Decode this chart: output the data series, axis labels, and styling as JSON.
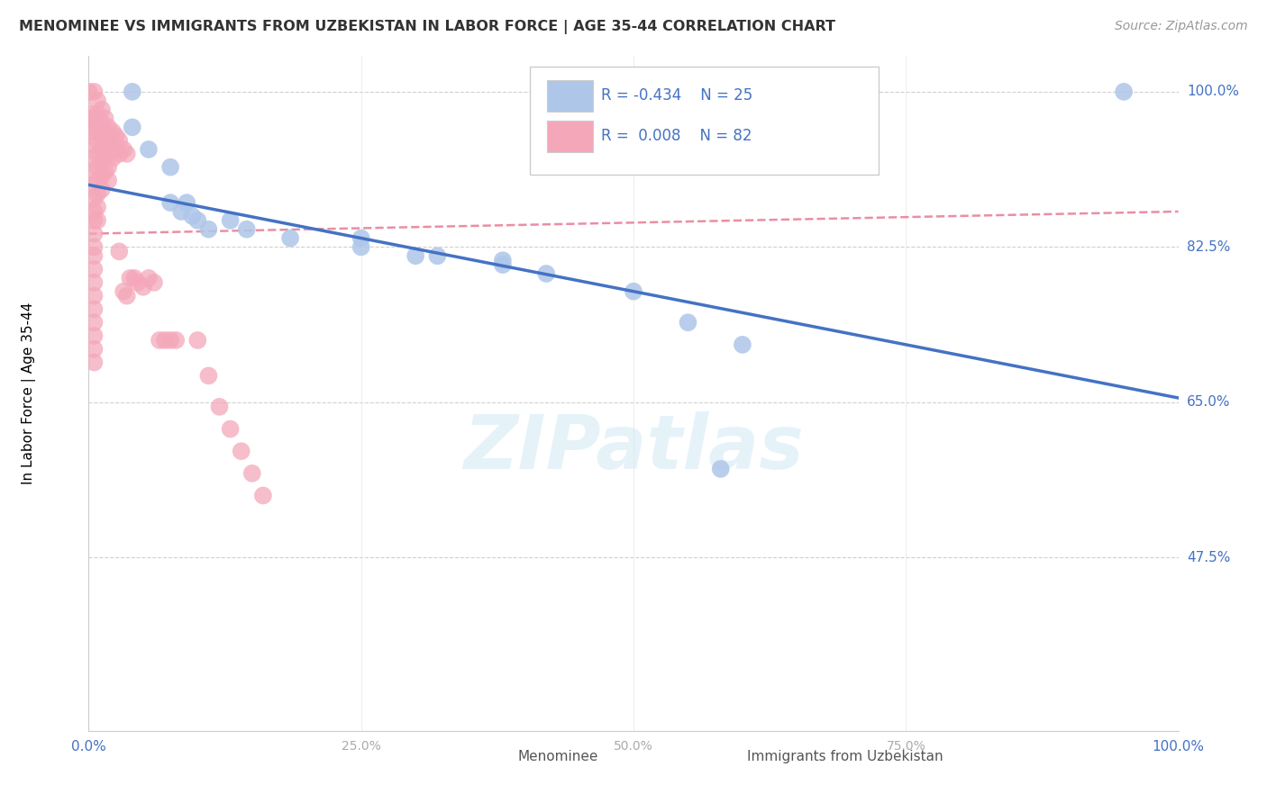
{
  "title": "MENOMINEE VS IMMIGRANTS FROM UZBEKISTAN IN LABOR FORCE | AGE 35-44 CORRELATION CHART",
  "source": "Source: ZipAtlas.com",
  "ylabel": "In Labor Force | Age 35-44",
  "xmin": 0.0,
  "xmax": 1.0,
  "ymin": 0.28,
  "ymax": 1.04,
  "watermark": "ZIPatlas",
  "legend_R_blue": "-0.434",
  "legend_N_blue": "25",
  "legend_R_pink": "0.008",
  "legend_N_pink": "82",
  "blue_color": "#aec6e8",
  "pink_color": "#f4a7b9",
  "blue_line_color": "#4472c4",
  "pink_line_color": "#e8829a",
  "ytick_positions": [
    1.0,
    0.825,
    0.65,
    0.475
  ],
  "ytick_labels": [
    "100.0%",
    "82.5%",
    "65.0%",
    "47.5%"
  ],
  "xtick_positions": [
    0.0,
    0.25,
    0.5,
    0.75,
    1.0
  ],
  "blue_scatter": [
    [
      0.04,
      1.0
    ],
    [
      0.04,
      0.96
    ],
    [
      0.055,
      0.935
    ],
    [
      0.075,
      0.915
    ],
    [
      0.075,
      0.875
    ],
    [
      0.085,
      0.865
    ],
    [
      0.09,
      0.875
    ],
    [
      0.095,
      0.86
    ],
    [
      0.1,
      0.855
    ],
    [
      0.11,
      0.845
    ],
    [
      0.13,
      0.855
    ],
    [
      0.145,
      0.845
    ],
    [
      0.185,
      0.835
    ],
    [
      0.25,
      0.835
    ],
    [
      0.25,
      0.825
    ],
    [
      0.3,
      0.815
    ],
    [
      0.32,
      0.815
    ],
    [
      0.38,
      0.81
    ],
    [
      0.38,
      0.805
    ],
    [
      0.42,
      0.795
    ],
    [
      0.5,
      0.775
    ],
    [
      0.55,
      0.74
    ],
    [
      0.6,
      0.715
    ],
    [
      0.95,
      1.0
    ],
    [
      0.58,
      0.575
    ]
  ],
  "pink_scatter": [
    [
      0.0,
      1.0
    ],
    [
      0.0,
      0.975
    ],
    [
      0.0,
      0.96
    ],
    [
      0.005,
      1.0
    ],
    [
      0.005,
      0.97
    ],
    [
      0.005,
      0.955
    ],
    [
      0.005,
      0.94
    ],
    [
      0.005,
      0.925
    ],
    [
      0.005,
      0.91
    ],
    [
      0.005,
      0.895
    ],
    [
      0.005,
      0.88
    ],
    [
      0.005,
      0.865
    ],
    [
      0.005,
      0.855
    ],
    [
      0.005,
      0.84
    ],
    [
      0.005,
      0.825
    ],
    [
      0.005,
      0.815
    ],
    [
      0.005,
      0.8
    ],
    [
      0.005,
      0.785
    ],
    [
      0.005,
      0.77
    ],
    [
      0.005,
      0.755
    ],
    [
      0.005,
      0.74
    ],
    [
      0.005,
      0.725
    ],
    [
      0.005,
      0.71
    ],
    [
      0.005,
      0.695
    ],
    [
      0.008,
      0.99
    ],
    [
      0.008,
      0.975
    ],
    [
      0.008,
      0.96
    ],
    [
      0.008,
      0.945
    ],
    [
      0.008,
      0.93
    ],
    [
      0.008,
      0.915
    ],
    [
      0.008,
      0.9
    ],
    [
      0.008,
      0.885
    ],
    [
      0.008,
      0.87
    ],
    [
      0.008,
      0.855
    ],
    [
      0.012,
      0.98
    ],
    [
      0.012,
      0.965
    ],
    [
      0.012,
      0.95
    ],
    [
      0.012,
      0.935
    ],
    [
      0.012,
      0.92
    ],
    [
      0.012,
      0.905
    ],
    [
      0.012,
      0.89
    ],
    [
      0.015,
      0.97
    ],
    [
      0.015,
      0.955
    ],
    [
      0.015,
      0.94
    ],
    [
      0.015,
      0.925
    ],
    [
      0.015,
      0.91
    ],
    [
      0.018,
      0.96
    ],
    [
      0.018,
      0.945
    ],
    [
      0.018,
      0.93
    ],
    [
      0.018,
      0.915
    ],
    [
      0.018,
      0.9
    ],
    [
      0.022,
      0.955
    ],
    [
      0.022,
      0.94
    ],
    [
      0.022,
      0.925
    ],
    [
      0.025,
      0.95
    ],
    [
      0.025,
      0.935
    ],
    [
      0.028,
      0.945
    ],
    [
      0.028,
      0.93
    ],
    [
      0.028,
      0.82
    ],
    [
      0.032,
      0.935
    ],
    [
      0.032,
      0.775
    ],
    [
      0.035,
      0.93
    ],
    [
      0.035,
      0.77
    ],
    [
      0.038,
      0.79
    ],
    [
      0.042,
      0.79
    ],
    [
      0.045,
      0.785
    ],
    [
      0.05,
      0.78
    ],
    [
      0.055,
      0.79
    ],
    [
      0.06,
      0.785
    ],
    [
      0.065,
      0.72
    ],
    [
      0.07,
      0.72
    ],
    [
      0.075,
      0.72
    ],
    [
      0.08,
      0.72
    ],
    [
      0.1,
      0.72
    ],
    [
      0.11,
      0.68
    ],
    [
      0.12,
      0.645
    ],
    [
      0.13,
      0.62
    ],
    [
      0.14,
      0.595
    ],
    [
      0.15,
      0.57
    ],
    [
      0.16,
      0.545
    ]
  ],
  "blue_line_x0": 0.0,
  "blue_line_y0": 0.895,
  "blue_line_x1": 1.0,
  "blue_line_y1": 0.655,
  "pink_line_x0": 0.0,
  "pink_line_y0": 0.84,
  "pink_line_x1": 1.0,
  "pink_line_y1": 0.865
}
